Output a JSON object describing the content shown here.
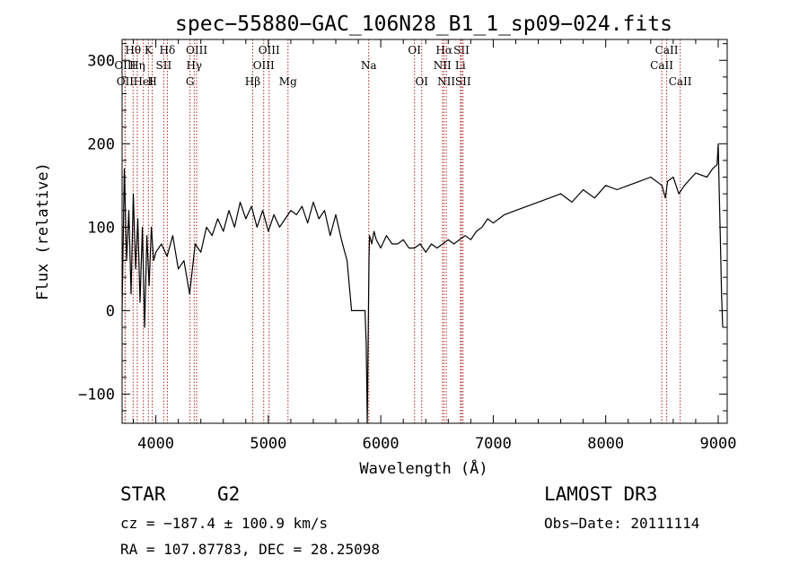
{
  "chart_data": {
    "type": "line",
    "title": "spec−55880−GAC_106N28_B1_1_sp09−024.fits",
    "xlabel": "Wavelength (Å)",
    "ylabel": "Flux (relative)",
    "xlim": [
      3700,
      9080
    ],
    "ylim": [
      -135,
      325
    ],
    "xticks": [
      4000,
      5000,
      6000,
      7000,
      8000,
      9000
    ],
    "yticks": [
      -100,
      0,
      100,
      200,
      300
    ],
    "ytick_labels": [
      "−100",
      "0",
      "100",
      "200",
      "300"
    ],
    "series": [
      {
        "name": "spectrum",
        "x": [
          3700,
          3720,
          3740,
          3760,
          3780,
          3800,
          3820,
          3840,
          3860,
          3880,
          3900,
          3920,
          3940,
          3960,
          3980,
          4000,
          4050,
          4100,
          4150,
          4200,
          4250,
          4300,
          4350,
          4400,
          4450,
          4500,
          4550,
          4600,
          4650,
          4700,
          4750,
          4800,
          4850,
          4900,
          4950,
          5000,
          5050,
          5100,
          5150,
          5200,
          5250,
          5300,
          5350,
          5400,
          5450,
          5500,
          5550,
          5600,
          5650,
          5700,
          5740,
          5760,
          5780,
          5800,
          5840,
          5860,
          5870,
          5880,
          5890,
          5895,
          5900,
          5910,
          5920,
          5940,
          5960,
          6000,
          6050,
          6100,
          6150,
          6200,
          6250,
          6300,
          6350,
          6400,
          6450,
          6500,
          6550,
          6600,
          6650,
          6700,
          6750,
          6800,
          6850,
          6900,
          6950,
          7000,
          7100,
          7200,
          7300,
          7400,
          7500,
          7600,
          7700,
          7800,
          7900,
          8000,
          8100,
          8200,
          8300,
          8400,
          8500,
          8530,
          8550,
          8600,
          8650,
          8700,
          8800,
          8900,
          8950,
          8990,
          9000,
          9010,
          9020,
          9030,
          9040
        ],
        "y": [
          0,
          170,
          60,
          120,
          20,
          140,
          50,
          110,
          10,
          100,
          -20,
          90,
          30,
          100,
          60,
          70,
          80,
          65,
          90,
          50,
          60,
          20,
          80,
          70,
          100,
          90,
          110,
          95,
          120,
          100,
          130,
          110,
          125,
          100,
          120,
          95,
          115,
          100,
          110,
          120,
          115,
          125,
          105,
          130,
          110,
          120,
          90,
          115,
          85,
          60,
          0,
          0,
          0,
          0,
          0,
          0,
          -40,
          -135,
          0,
          60,
          90,
          85,
          80,
          95,
          85,
          75,
          90,
          80,
          80,
          85,
          75,
          75,
          80,
          70,
          80,
          75,
          80,
          85,
          80,
          85,
          90,
          85,
          95,
          100,
          110,
          105,
          115,
          120,
          125,
          130,
          135,
          140,
          130,
          145,
          135,
          150,
          145,
          150,
          155,
          160,
          150,
          135,
          155,
          160,
          140,
          150,
          165,
          160,
          170,
          175,
          200,
          140,
          80,
          20,
          -20
        ]
      }
    ],
    "spectral_lines": [
      {
        "label": "OII",
        "x": 3727,
        "row": 0
      },
      {
        "label": "OIII",
        "x": 3727,
        "row": 1
      },
      {
        "label": "Hθ",
        "x": 3798,
        "row": 2
      },
      {
        "label": "HeI",
        "x": 3889,
        "row": 0
      },
      {
        "label": "Hη",
        "x": 3835,
        "row": 1
      },
      {
        "label": "K",
        "x": 3934,
        "row": 2
      },
      {
        "label": "SII",
        "x": 4070,
        "row": 1
      },
      {
        "label": "H",
        "x": 3968,
        "row": 0
      },
      {
        "label": "Hδ",
        "x": 4102,
        "row": 2
      },
      {
        "label": "OIII",
        "x": 4363,
        "row": 2
      },
      {
        "label": "Hγ",
        "x": 4341,
        "row": 1
      },
      {
        "label": "G",
        "x": 4304,
        "row": 0
      },
      {
        "label": "Hβ",
        "x": 4861,
        "row": 0
      },
      {
        "label": "OIII",
        "x": 5007,
        "row": 2
      },
      {
        "label": "OIII",
        "x": 4959,
        "row": 1
      },
      {
        "label": "Mg",
        "x": 5175,
        "row": 0
      },
      {
        "label": "Na",
        "x": 5893,
        "row": 1
      },
      {
        "label": "OI",
        "x": 6300,
        "row": 2
      },
      {
        "label": "OI",
        "x": 6364,
        "row": 0
      },
      {
        "label": "Hα",
        "x": 6563,
        "row": 2
      },
      {
        "label": "NII",
        "x": 6548,
        "row": 1
      },
      {
        "label": "NII",
        "x": 6583,
        "row": 0
      },
      {
        "label": "SII",
        "x": 6717,
        "row": 2
      },
      {
        "label": "Li",
        "x": 6708,
        "row": 1
      },
      {
        "label": "SII",
        "x": 6731,
        "row": 0
      },
      {
        "label": "CaII",
        "x": 8542,
        "row": 2
      },
      {
        "label": "CaII",
        "x": 8498,
        "row": 1
      },
      {
        "label": "CaII",
        "x": 8662,
        "row": 0
      }
    ]
  },
  "info": {
    "object_class": "STAR",
    "subclass": "G2",
    "survey": "LAMOST DR3",
    "cz": "cz = −187.4 ± 100.9 km/s",
    "obs_date": "Obs−Date: 20111114",
    "coords": "RA = 107.87783, DEC =  28.25098"
  },
  "colors": {
    "spectrum": "#000000",
    "line_markers": "#b22222",
    "axes": "#000000"
  }
}
